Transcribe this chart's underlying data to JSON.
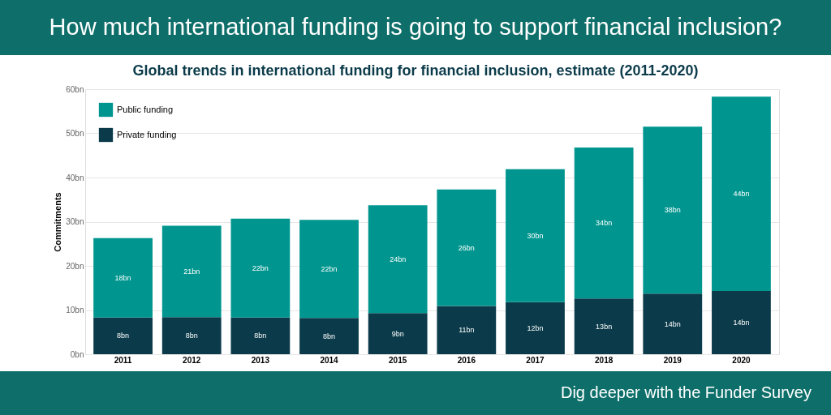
{
  "chart_data": {
    "type": "bar",
    "title": "How much international funding is going to support financial inclusion?",
    "subtitle": "Global trends in international funding for financial inclusion, estimate (2011-2020)",
    "ylabel": "Commitments",
    "categories": [
      "2011",
      "2012",
      "2013",
      "2014",
      "2015",
      "2016",
      "2017",
      "2018",
      "2019",
      "2020"
    ],
    "series": [
      {
        "name": "Private funding",
        "color": "#0b3b4a",
        "values": [
          8.3,
          8.4,
          8.3,
          8.2,
          9.3,
          10.9,
          11.8,
          12.6,
          13.7,
          14.3
        ],
        "value_labels": [
          "8bn",
          "8bn",
          "8bn",
          "8bn",
          "9bn",
          "11bn",
          "12bn",
          "13bn",
          "14bn",
          "14bn"
        ]
      },
      {
        "name": "Public funding",
        "color": "#00968f",
        "values": [
          18.0,
          20.7,
          22.4,
          22.2,
          24.4,
          26.4,
          30.1,
          34.2,
          37.8,
          44.0
        ],
        "value_labels": [
          "18bn",
          "21bn",
          "22bn",
          "22bn",
          "24bn",
          "26bn",
          "30bn",
          "34bn",
          "38bn",
          "44bn"
        ]
      }
    ],
    "stacked": true,
    "ylim": [
      0,
      60
    ],
    "yticks": [
      {
        "value": 0,
        "label": "0bn"
      },
      {
        "value": 10,
        "label": "10bn"
      },
      {
        "value": 20,
        "label": "20bn"
      },
      {
        "value": 30,
        "label": "30bn"
      },
      {
        "value": 40,
        "label": "40bn"
      },
      {
        "value": 50,
        "label": "50bn"
      },
      {
        "value": 60,
        "label": "60bn"
      }
    ],
    "grid": "y",
    "legend": "top left",
    "annotations": [
      "Dig deeper with the Funder Survey"
    ]
  }
}
